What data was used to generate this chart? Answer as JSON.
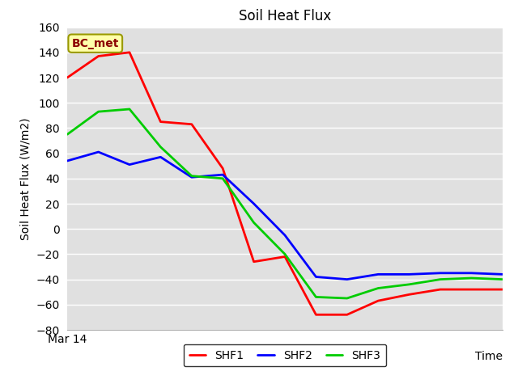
{
  "title": "Soil Heat Flux",
  "ylabel": "Soil Heat Flux (W/m2)",
  "xlabel": "Time",
  "xlim": [
    0,
    14
  ],
  "ylim": [
    -80,
    160
  ],
  "yticks": [
    -80,
    -60,
    -40,
    -20,
    0,
    20,
    40,
    60,
    80,
    100,
    120,
    140,
    160
  ],
  "x_tick_label": "Mar 14",
  "annotation": "BC_met",
  "fig_bg_color": "#ffffff",
  "plot_bg_color": "#e0e0e0",
  "SHF1_color": "#ff0000",
  "SHF2_color": "#0000ff",
  "SHF3_color": "#00cc00",
  "SHF1_x": [
    0,
    1,
    2,
    3,
    4,
    5,
    6,
    7,
    8,
    9,
    10,
    11,
    12,
    13,
    14
  ],
  "SHF1_y": [
    120,
    137,
    140,
    85,
    83,
    48,
    -26,
    -22,
    -68,
    -68,
    -57,
    -52,
    -48,
    -48,
    -48
  ],
  "SHF2_x": [
    0,
    1,
    2,
    3,
    4,
    5,
    6,
    7,
    8,
    9,
    10,
    11,
    12,
    13,
    14
  ],
  "SHF2_y": [
    54,
    61,
    51,
    57,
    41,
    43,
    20,
    -5,
    -38,
    -40,
    -36,
    -36,
    -35,
    -35,
    -36
  ],
  "SHF3_x": [
    0,
    1,
    2,
    3,
    4,
    5,
    6,
    7,
    8,
    9,
    10,
    11,
    12,
    13,
    14
  ],
  "SHF3_y": [
    75,
    93,
    95,
    65,
    42,
    40,
    5,
    -20,
    -54,
    -55,
    -47,
    -44,
    -40,
    -39,
    -40
  ],
  "line_width": 2.0,
  "title_fontsize": 12,
  "label_fontsize": 10,
  "tick_fontsize": 10,
  "legend_fontsize": 10,
  "annot_fontsize": 10
}
